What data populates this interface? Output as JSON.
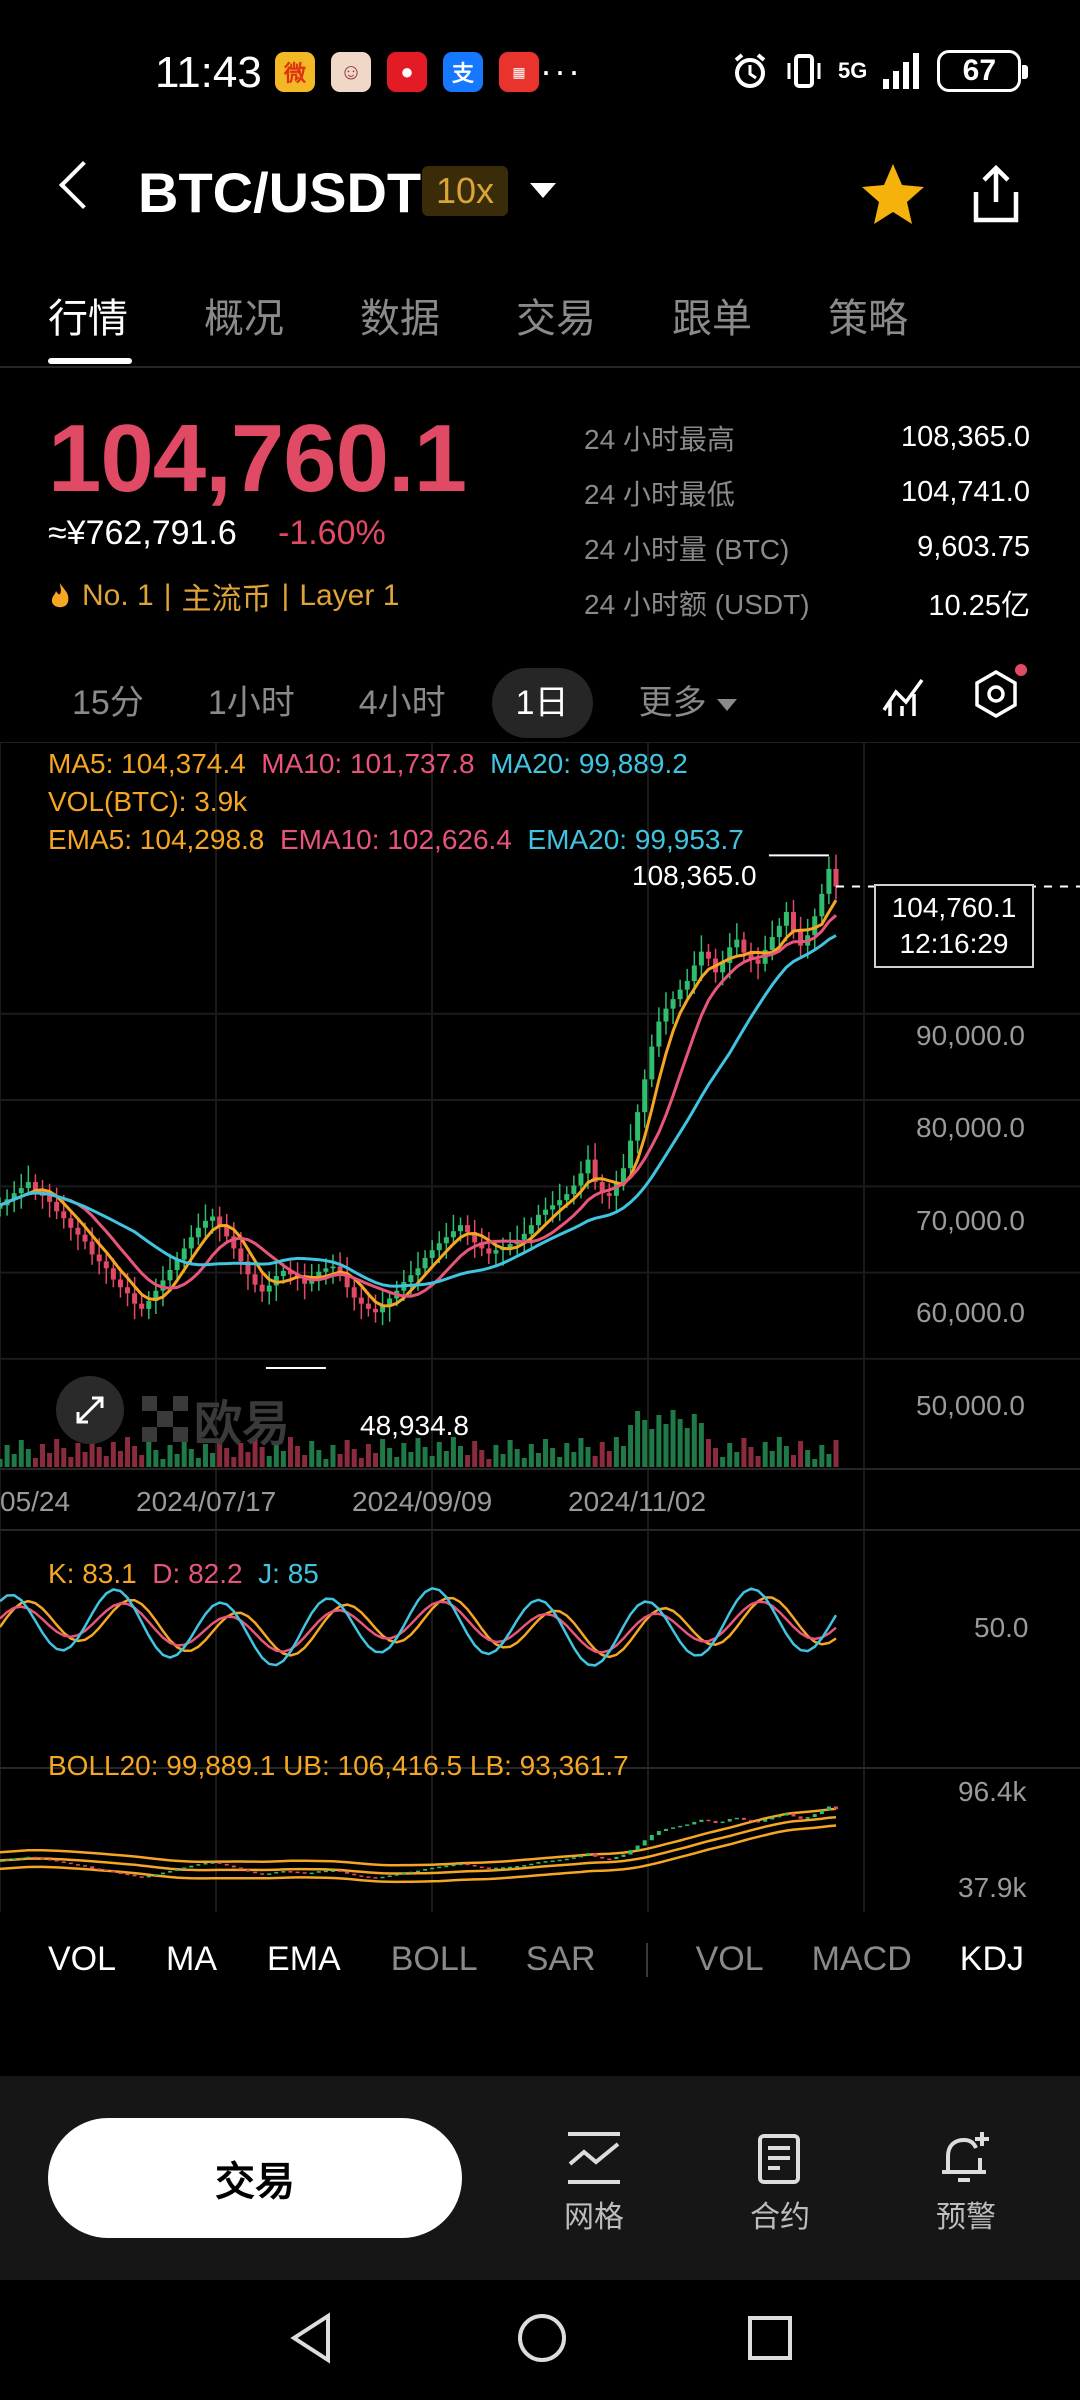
{
  "status_bar": {
    "time": "11:43",
    "more": "···",
    "signal": "5G",
    "battery": "67"
  },
  "header": {
    "pair": "BTC/USDT",
    "leverage": "10x"
  },
  "tabs": [
    "行情",
    "概况",
    "数据",
    "交易",
    "跟单",
    "策略"
  ],
  "price_block": {
    "price": "104,760.1",
    "cny": "≈¥762,791.6",
    "change": "-1.60%",
    "tags": [
      "No. 1",
      "主流币",
      "Layer 1"
    ],
    "stats": [
      {
        "label": "24 小时最高",
        "value": "108,365.0"
      },
      {
        "label": "24 小时最低",
        "value": "104,741.0"
      },
      {
        "label": "24 小时量 (BTC)",
        "value": "9,603.75"
      },
      {
        "label": "24 小时额 (USDT)",
        "value": "10.25亿"
      }
    ]
  },
  "intervals": [
    "15分",
    "1小时",
    "4小时",
    "1日",
    "更多"
  ],
  "indicators": {
    "ma": {
      "ma5": "MA5: 104,374.4",
      "ma10": "MA10: 101,737.8",
      "ma20": "MA20: 99,889.2"
    },
    "vol": "VOL(BTC): 3.9k",
    "ema": {
      "ema5": "EMA5: 104,298.8",
      "ema10": "EMA10: 102,626.4",
      "ema20": "EMA20: 99,953.7"
    },
    "kdj": {
      "k": "K: 83.1",
      "d": "D: 82.2",
      "j": "J: 85"
    },
    "boll": "BOLL20: 99,889.1 UB: 106,416.5 LB: 93,361.7"
  },
  "chart_data": {
    "type": "candlestick",
    "high_label": "108,365.0",
    "low_label": "48,934.8",
    "last_price": "104,760.1",
    "last_time": "12:16:29",
    "y_ticks": [
      "90,000.0",
      "80,000.0",
      "70,000.0",
      "60,000.0",
      "50,000.0"
    ],
    "x_ticks": [
      "05/24",
      "2024/07/17",
      "2024/09/09",
      "2024/11/02"
    ],
    "kdj_tick": "50.0",
    "boll_ticks": [
      "96.4k",
      "37.9k"
    ],
    "ylim": [
      45000,
      112000
    ],
    "closes": [
      67800,
      68500,
      69200,
      69800,
      70500,
      69600,
      68900,
      68200,
      67100,
      66300,
      65200,
      64400,
      63600,
      62100,
      61300,
      60500,
      59200,
      58300,
      57600,
      56400,
      55800,
      56700,
      57900,
      59100,
      60300,
      61500,
      62800,
      64100,
      65200,
      66000,
      66500,
      65400,
      64200,
      62800,
      61300,
      59800,
      58600,
      57800,
      58500,
      59600,
      60200,
      59800,
      59400,
      58700,
      59100,
      60100,
      60500,
      60700,
      59900,
      58300,
      57100,
      56400,
      55800,
      55400,
      56100,
      57000,
      57900,
      58900,
      59700,
      60500,
      61700,
      62600,
      63400,
      64100,
      64800,
      65500,
      64700,
      63500,
      62800,
      62200,
      62600,
      62900,
      63300,
      63800,
      64500,
      65500,
      66700,
      67300,
      67800,
      68400,
      69100,
      70100,
      71500,
      73100,
      70500,
      69200,
      68900,
      70400,
      72100,
      75300,
      78600,
      82400,
      86200,
      89100,
      90600,
      91700,
      92800,
      93800,
      95600,
      97200,
      96400,
      94800,
      95900,
      97700,
      98600,
      97100,
      96300,
      95800,
      97400,
      98900,
      100200,
      101800,
      99600,
      97900,
      99100,
      101300,
      103900,
      106800,
      104760
    ]
  },
  "ind_tabs": {
    "left": [
      "VOL",
      "MA",
      "EMA",
      "BOLL",
      "SAR"
    ],
    "right": [
      "VOL",
      "MACD",
      "KDJ"
    ]
  },
  "bottom": {
    "trade": "交易",
    "actions": [
      {
        "label": "网格",
        "icon": "grid-trading-icon"
      },
      {
        "label": "合约",
        "icon": "contract-icon"
      },
      {
        "label": "预警",
        "icon": "alert-bell-icon"
      }
    ],
    "watermark": "欧易"
  },
  "colors": {
    "down": "#e04a64",
    "up": "#2fbd6e",
    "ma5": "#f5a623",
    "ma10": "#e8557a",
    "ma20": "#40c4e0",
    "star": "#f5b20a"
  }
}
